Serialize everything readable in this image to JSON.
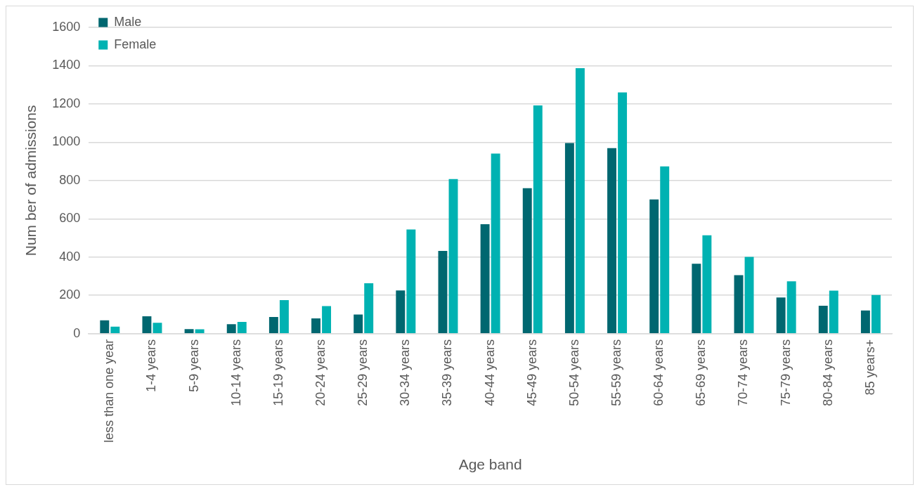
{
  "chart_data": {
    "type": "bar",
    "xlabel": "Age band",
    "ylabel": "Num ber of admissions",
    "categories": [
      "less than one year",
      "1-4 years",
      "5-9 years",
      "10-14 years",
      "15-19 years",
      "20-24 years",
      "25-29 years",
      "30-34 years",
      "35-39 years",
      "40-44 years",
      "45-49 years",
      "50-54 years",
      "55-59 years",
      "60-64 years",
      "65-69 years",
      "70-74 years",
      "75-79 years",
      "80-84 years",
      "85 years+"
    ],
    "series": [
      {
        "name": "Male",
        "color": "#006770",
        "values": [
          70,
          91,
          24,
          49,
          87,
          80,
          100,
          226,
          432,
          572,
          760,
          996,
          969,
          701,
          365,
          306,
          189,
          146,
          121
        ]
      },
      {
        "name": "Female",
        "color": "#00b2b2",
        "values": [
          37,
          57,
          23,
          61,
          175,
          144,
          263,
          544,
          808,
          941,
          1192,
          1387,
          1260,
          874,
          514,
          401,
          273,
          225,
          202
        ]
      }
    ],
    "ylim": [
      0,
      1600
    ],
    "yticks": [
      0,
      200,
      400,
      600,
      800,
      1000,
      1200,
      1400,
      1600
    ],
    "grid": "y",
    "legend": "top left"
  }
}
